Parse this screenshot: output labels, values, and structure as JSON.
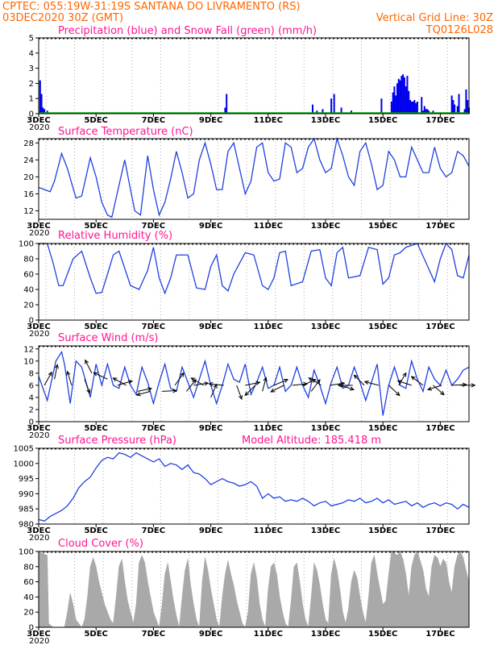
{
  "header": {
    "line1_left": "CPTEC:   055:19W-31:19S  SANTANA DO LIVRAMENTO (RS)",
    "line2_left": "03DEC2020 30Z (GMT)",
    "line2_right": "Vertical Grid Line: 30Z",
    "line3_right": "TQ0126L028",
    "model_altitude": "Model Altitude: 185.418  m"
  },
  "colors": {
    "header": "#ff6600",
    "panel_title": "#ff1493",
    "line": "#2040e0",
    "precip": "#0000ee",
    "snow": "#00aa00",
    "cloud": "#a9a9a9",
    "grid": "#aaaaaa",
    "arrow": "#000000"
  },
  "x_axis": {
    "start_day": 3,
    "end_day": 18,
    "tick_days": [
      3,
      5,
      7,
      9,
      11,
      13,
      15,
      17
    ],
    "tick_labels": [
      "3DEC",
      "5DEC",
      "7DEC",
      "9DEC",
      "11DEC",
      "13DEC",
      "15DEC",
      "17DEC"
    ],
    "vertical_grid_days": [
      3.25,
      4.25,
      5.25,
      6.25,
      7.25,
      8.25,
      9.25,
      10.25,
      11.25,
      12.25,
      13.25,
      14.25,
      15.25,
      16.25,
      17.25
    ]
  },
  "chart_data": [
    {
      "id": "precip",
      "type": "bar",
      "title": "Precipitation (blue) and Snow Fall (green) (mm/h)",
      "ylim": [
        0,
        5
      ],
      "yticks": [
        0,
        1,
        2,
        3,
        4,
        5
      ],
      "x": [
        3.05,
        3.1,
        3.15,
        3.2,
        3.3,
        9.5,
        9.55,
        12.55,
        12.7,
        12.9,
        13.2,
        13.3,
        13.55,
        13.9,
        14.95,
        15.3,
        15.35,
        15.4,
        15.45,
        15.5,
        15.55,
        15.6,
        15.65,
        15.7,
        15.75,
        15.8,
        15.85,
        15.9,
        15.95,
        16.0,
        16.05,
        16.1,
        16.15,
        16.2,
        16.35,
        16.4,
        16.45,
        16.5,
        16.55,
        16.6,
        16.75,
        17.4,
        17.45,
        17.5,
        17.6,
        17.65,
        17.85,
        17.9,
        17.95,
        18.0
      ],
      "values": [
        2.2,
        1.3,
        0.4,
        0.3,
        0.2,
        0.4,
        1.3,
        0.6,
        0.2,
        0.3,
        1.0,
        1.3,
        0.4,
        0.2,
        1.0,
        0.8,
        1.4,
        1.8,
        1.2,
        2.0,
        2.3,
        2.2,
        2.5,
        2.6,
        2.4,
        1.8,
        2.5,
        1.5,
        0.9,
        0.8,
        0.8,
        0.9,
        0.7,
        0.8,
        1.1,
        0.2,
        0.5,
        0.3,
        0.3,
        0.2,
        0.2,
        1.2,
        0.9,
        0.6,
        0.5,
        1.3,
        0.3,
        1.6,
        0.9,
        0.4
      ],
      "snow": []
    },
    {
      "id": "temp",
      "type": "line",
      "title": "Surface Temperature (nC)",
      "ylim": [
        10,
        29
      ],
      "yticks": [
        12,
        16,
        20,
        24,
        28
      ],
      "x": [
        3.0,
        3.2,
        3.4,
        3.55,
        3.8,
        4.0,
        4.3,
        4.5,
        4.8,
        5.0,
        5.2,
        5.4,
        5.55,
        5.8,
        6.0,
        6.2,
        6.35,
        6.55,
        6.8,
        7.0,
        7.2,
        7.4,
        7.6,
        7.8,
        8.0,
        8.2,
        8.4,
        8.6,
        8.8,
        9.0,
        9.2,
        9.4,
        9.6,
        9.8,
        10.0,
        10.2,
        10.4,
        10.6,
        10.8,
        11.0,
        11.2,
        11.4,
        11.6,
        11.8,
        12.0,
        12.2,
        12.4,
        12.6,
        12.8,
        13.0,
        13.2,
        13.4,
        13.6,
        13.8,
        14.0,
        14.2,
        14.4,
        14.6,
        14.8,
        15.0,
        15.2,
        15.4,
        15.6,
        15.8,
        16.0,
        16.2,
        16.4,
        16.6,
        16.8,
        17.0,
        17.2,
        17.4,
        17.6,
        17.8,
        18.0
      ],
      "values": [
        17.5,
        17.0,
        16.5,
        19.0,
        25.5,
        22.0,
        15.0,
        15.5,
        24.5,
        20.0,
        14.0,
        11.0,
        10.5,
        18.0,
        24.0,
        17.0,
        12.0,
        11.0,
        25.0,
        17.0,
        11.0,
        14.0,
        19.5,
        26.0,
        21.0,
        15.0,
        16.0,
        24.0,
        28.0,
        23.0,
        17.0,
        17.0,
        26.0,
        28.0,
        22.0,
        16.0,
        19.0,
        27.0,
        28.0,
        21.0,
        19.0,
        19.5,
        28.0,
        27.0,
        21.0,
        22.0,
        27.0,
        29.0,
        24.0,
        21.0,
        22.0,
        29.0,
        25.0,
        20.0,
        18.0,
        26.0,
        28.0,
        23.0,
        17.0,
        18.0,
        26.0,
        24.0,
        20.0,
        20.0,
        27.0,
        24.0,
        21.0,
        21.0,
        27.0,
        22.0,
        20.0,
        21.0,
        26.0,
        25.0,
        22.5
      ]
    },
    {
      "id": "rh",
      "type": "line",
      "title": "Relative Humidity (%)",
      "ylim": [
        0,
        100
      ],
      "yticks": [
        0,
        20,
        40,
        60,
        80,
        100
      ],
      "x": [
        3.0,
        3.3,
        3.5,
        3.7,
        3.85,
        4.2,
        4.5,
        4.8,
        5.0,
        5.2,
        5.4,
        5.6,
        5.8,
        6.2,
        6.5,
        6.8,
        7.0,
        7.2,
        7.4,
        7.6,
        7.8,
        8.2,
        8.5,
        8.8,
        9.0,
        9.2,
        9.4,
        9.6,
        9.8,
        10.2,
        10.5,
        10.8,
        11.0,
        11.2,
        11.4,
        11.6,
        11.8,
        12.2,
        12.5,
        12.8,
        13.0,
        13.2,
        13.4,
        13.6,
        13.8,
        14.2,
        14.5,
        14.8,
        15.0,
        15.2,
        15.4,
        15.6,
        15.8,
        16.2,
        16.5,
        16.8,
        17.0,
        17.2,
        17.4,
        17.6,
        17.8,
        18.0
      ],
      "values": [
        100,
        100,
        75,
        45,
        45,
        80,
        90,
        55,
        35,
        36,
        60,
        85,
        90,
        45,
        40,
        65,
        95,
        55,
        35,
        55,
        85,
        85,
        42,
        40,
        70,
        85,
        45,
        38,
        60,
        88,
        85,
        45,
        40,
        55,
        88,
        90,
        45,
        50,
        90,
        92,
        55,
        45,
        88,
        95,
        55,
        58,
        95,
        92,
        47,
        55,
        85,
        88,
        95,
        100,
        75,
        50,
        80,
        100,
        92,
        58,
        55,
        85
      ]
    },
    {
      "id": "wind",
      "type": "line",
      "title": "Surface Wind (m/s)",
      "ylim": [
        0,
        12.5
      ],
      "yticks": [
        0,
        2,
        4,
        6,
        8,
        10,
        12
      ],
      "x": [
        3.0,
        3.3,
        3.6,
        3.8,
        3.9,
        4.1,
        4.3,
        4.5,
        4.8,
        5.0,
        5.2,
        5.4,
        5.6,
        5.8,
        6.0,
        6.2,
        6.4,
        6.6,
        6.8,
        7.0,
        7.2,
        7.4,
        7.6,
        7.8,
        8.0,
        8.2,
        8.4,
        8.6,
        8.8,
        9.0,
        9.2,
        9.4,
        9.6,
        9.8,
        10.0,
        10.2,
        10.4,
        10.6,
        10.8,
        11.0,
        11.2,
        11.4,
        11.6,
        11.8,
        12.0,
        12.2,
        12.4,
        12.6,
        12.8,
        13.0,
        13.2,
        13.4,
        13.6,
        13.8,
        14.0,
        14.2,
        14.4,
        14.6,
        14.8,
        15.0,
        15.2,
        15.4,
        15.6,
        15.8,
        16.0,
        16.2,
        16.4,
        16.6,
        16.8,
        17.0,
        17.2,
        17.4,
        17.6,
        17.8,
        18.0
      ],
      "values": [
        7.5,
        3.5,
        10.0,
        11.5,
        9.5,
        3.0,
        10.0,
        9.0,
        4.0,
        9.5,
        6.0,
        9.5,
        6.0,
        5.5,
        9.0,
        6.0,
        4.5,
        9.0,
        6.5,
        3.0,
        6.5,
        9.5,
        5.5,
        5.0,
        9.0,
        6.5,
        4.0,
        7.0,
        10.0,
        6.0,
        3.0,
        6.0,
        9.5,
        7.0,
        6.5,
        9.5,
        4.5,
        6.5,
        9.0,
        5.5,
        6.0,
        9.0,
        5.0,
        6.0,
        9.0,
        6.0,
        4.0,
        8.5,
        6.0,
        3.0,
        6.5,
        9.0,
        5.5,
        6.0,
        9.0,
        6.5,
        3.5,
        6.5,
        9.5,
        1.0,
        6.0,
        9.0,
        6.0,
        5.5,
        10.0,
        7.0,
        5.0,
        9.0,
        7.0,
        6.0,
        8.5,
        6.0,
        7.0,
        8.5,
        9.0
      ],
      "arrows": [
        {
          "x": 3.2,
          "speed": 6,
          "u": 1,
          "v": 1.8
        },
        {
          "x": 3.55,
          "speed": 7,
          "u": 0.4,
          "v": 2.0
        },
        {
          "x": 4.15,
          "speed": 6,
          "u": -0.6,
          "v": 1.9
        },
        {
          "x": 4.6,
          "speed": 7,
          "u": 0.7,
          "v": -1.9
        },
        {
          "x": 4.85,
          "speed": 8,
          "u": -0.9,
          "v": 1.8
        },
        {
          "x": 5.4,
          "speed": 7,
          "u": -1.9,
          "v": 0.9
        },
        {
          "x": 5.75,
          "speed": 6,
          "u": 2.0,
          "v": 0.6
        },
        {
          "x": 6.05,
          "speed": 6,
          "u": -1.8,
          "v": 1.0
        },
        {
          "x": 6.45,
          "speed": 5,
          "u": 1.9,
          "v": 0.4
        },
        {
          "x": 6.9,
          "speed": 5,
          "u": -1.9,
          "v": -0.5
        },
        {
          "x": 7.3,
          "speed": 5,
          "u": 2.0,
          "v": 0.1
        },
        {
          "x": 7.75,
          "speed": 6,
          "u": 1.2,
          "v": 1.7
        },
        {
          "x": 8.15,
          "speed": 5,
          "u": 1.3,
          "v": 1.6
        },
        {
          "x": 8.4,
          "speed": 6,
          "u": 2.0,
          "v": 0.3
        },
        {
          "x": 8.75,
          "speed": 6,
          "u": -1.7,
          "v": 1.0
        },
        {
          "x": 9.0,
          "speed": 4,
          "u": 0.8,
          "v": 1.8
        },
        {
          "x": 9.45,
          "speed": 6,
          "u": -2.0,
          "v": 0.2
        },
        {
          "x": 9.9,
          "speed": 6,
          "u": 0.7,
          "v": -1.9
        },
        {
          "x": 10.2,
          "speed": 6,
          "u": 2.0,
          "v": 0.4
        },
        {
          "x": 10.55,
          "speed": 6,
          "u": -1.4,
          "v": -1.4
        },
        {
          "x": 10.8,
          "speed": 5,
          "u": 0.5,
          "v": 1.9
        },
        {
          "x": 11.2,
          "speed": 6,
          "u": 1.9,
          "v": 0.8
        },
        {
          "x": 11.55,
          "speed": 6,
          "u": -1.8,
          "v": -0.9
        },
        {
          "x": 11.85,
          "speed": 6,
          "u": 2.0,
          "v": 0.2
        },
        {
          "x": 12.2,
          "speed": 6,
          "u": 1.8,
          "v": 0.8
        },
        {
          "x": 12.5,
          "speed": 5,
          "u": 1.2,
          "v": 1.6
        },
        {
          "x": 12.85,
          "speed": 6,
          "u": -1.7,
          "v": 1.0
        },
        {
          "x": 13.15,
          "speed": 6,
          "u": 2.0,
          "v": 0.3
        },
        {
          "x": 13.5,
          "speed": 6,
          "u": 1.9,
          "v": -0.6
        },
        {
          "x": 13.95,
          "speed": 6,
          "u": -2.0,
          "v": 0.0
        },
        {
          "x": 14.35,
          "speed": 6,
          "u": -1.4,
          "v": 1.4
        },
        {
          "x": 14.85,
          "speed": 6,
          "u": -1.9,
          "v": 0.5
        },
        {
          "x": 15.2,
          "speed": 6,
          "u": 1.5,
          "v": -1.4
        },
        {
          "x": 15.55,
          "speed": 6,
          "u": 1.0,
          "v": 1.7
        },
        {
          "x": 16.0,
          "speed": 6,
          "u": -1.9,
          "v": 0.6
        },
        {
          "x": 16.4,
          "speed": 6,
          "u": -1.6,
          "v": 1.2
        },
        {
          "x": 16.75,
          "speed": 6,
          "u": 1.5,
          "v": -1.3
        },
        {
          "x": 17.05,
          "speed": 6,
          "u": -1.9,
          "v": -0.6
        },
        {
          "x": 17.4,
          "speed": 6,
          "u": 2.0,
          "v": 0.1
        },
        {
          "x": 17.7,
          "speed": 6,
          "u": 2.0,
          "v": 0.0
        }
      ]
    },
    {
      "id": "pressure",
      "type": "line",
      "title": "Surface Pressure (hPa)",
      "ylim": [
        980,
        1005
      ],
      "yticks": [
        980,
        985,
        990,
        995,
        1000,
        1005
      ],
      "x": [
        3.0,
        3.2,
        3.4,
        3.6,
        3.8,
        4.0,
        4.2,
        4.4,
        4.6,
        4.8,
        5.0,
        5.2,
        5.4,
        5.6,
        5.8,
        6.0,
        6.2,
        6.4,
        6.6,
        6.8,
        7.0,
        7.2,
        7.4,
        7.6,
        7.8,
        8.0,
        8.2,
        8.4,
        8.6,
        8.8,
        9.0,
        9.2,
        9.4,
        9.6,
        9.8,
        10.0,
        10.2,
        10.4,
        10.6,
        10.8,
        11.0,
        11.2,
        11.4,
        11.6,
        11.8,
        12.0,
        12.2,
        12.4,
        12.6,
        12.8,
        13.0,
        13.2,
        13.4,
        13.6,
        13.8,
        14.0,
        14.2,
        14.4,
        14.6,
        14.8,
        15.0,
        15.2,
        15.4,
        15.6,
        15.8,
        16.0,
        16.2,
        16.4,
        16.6,
        16.8,
        17.0,
        17.2,
        17.4,
        17.6,
        17.8,
        18.0
      ],
      "values": [
        981.5,
        981.0,
        982.5,
        983.5,
        984.5,
        986.0,
        988.5,
        992.0,
        994.0,
        995.5,
        998.5,
        1001.0,
        1002.0,
        1001.5,
        1003.5,
        1003.0,
        1002.0,
        1003.5,
        1002.5,
        1001.5,
        1000.5,
        1001.5,
        999.0,
        1000.0,
        999.5,
        998.0,
        999.5,
        997.0,
        996.5,
        995.0,
        993.0,
        994.0,
        995.0,
        994.0,
        993.5,
        992.5,
        993.0,
        994.0,
        992.5,
        988.5,
        990.0,
        988.5,
        989.0,
        987.5,
        988.0,
        987.5,
        988.5,
        987.5,
        986.0,
        987.0,
        987.5,
        986.0,
        986.5,
        987.0,
        988.0,
        987.5,
        988.5,
        987.0,
        987.5,
        988.5,
        987.0,
        988.0,
        986.5,
        987.0,
        987.5,
        986.0,
        987.0,
        985.5,
        986.5,
        987.0,
        986.0,
        987.0,
        986.5,
        985.0,
        986.5,
        985.5
      ]
    },
    {
      "id": "cloud",
      "type": "area",
      "title": "Cloud Cover (%)",
      "ylim": [
        0,
        100
      ],
      "yticks": [
        0,
        20,
        40,
        60,
        80,
        100
      ],
      "x": [
        3.0,
        3.1,
        3.3,
        3.35,
        3.5,
        3.6,
        3.7,
        3.8,
        3.9,
        4.0,
        4.1,
        4.2,
        4.3,
        4.4,
        4.5,
        4.6,
        4.7,
        4.8,
        4.9,
        5.0,
        5.1,
        5.2,
        5.3,
        5.4,
        5.5,
        5.6,
        5.7,
        5.8,
        5.9,
        6.0,
        6.1,
        6.2,
        6.3,
        6.4,
        6.5,
        6.6,
        6.7,
        6.8,
        6.9,
        7.0,
        7.1,
        7.2,
        7.3,
        7.4,
        7.5,
        7.6,
        7.7,
        7.8,
        7.9,
        8.0,
        8.1,
        8.2,
        8.3,
        8.4,
        8.5,
        8.6,
        8.7,
        8.8,
        8.9,
        9.0,
        9.1,
        9.2,
        9.3,
        9.4,
        9.5,
        9.6,
        9.7,
        9.8,
        9.9,
        10.0,
        10.1,
        10.2,
        10.3,
        10.4,
        10.5,
        10.6,
        10.7,
        10.8,
        10.9,
        11.0,
        11.1,
        11.2,
        11.3,
        11.4,
        11.5,
        11.6,
        11.7,
        11.8,
        11.9,
        12.0,
        12.1,
        12.2,
        12.3,
        12.4,
        12.5,
        12.6,
        12.7,
        12.8,
        12.9,
        13.0,
        13.1,
        13.2,
        13.3,
        13.4,
        13.5,
        13.6,
        13.7,
        13.8,
        13.9,
        14.0,
        14.1,
        14.2,
        14.3,
        14.4,
        14.5,
        14.6,
        14.7,
        14.8,
        14.9,
        15.0,
        15.1,
        15.2,
        15.3,
        15.4,
        15.5,
        15.6,
        15.7,
        15.8,
        15.9,
        16.0,
        16.1,
        16.2,
        16.3,
        16.4,
        16.5,
        16.6,
        16.7,
        16.8,
        16.9,
        17.0,
        17.1,
        17.2,
        17.3,
        17.4,
        17.5,
        17.6,
        17.7,
        17.8,
        17.9,
        18.0
      ],
      "values": [
        100,
        98,
        95,
        5,
        0,
        0,
        0,
        0,
        0,
        20,
        45,
        30,
        10,
        5,
        0,
        10,
        40,
        80,
        92,
        80,
        60,
        45,
        30,
        20,
        10,
        5,
        40,
        80,
        90,
        60,
        35,
        20,
        5,
        30,
        85,
        95,
        85,
        60,
        40,
        20,
        10,
        0,
        30,
        70,
        85,
        60,
        35,
        15,
        0,
        40,
        75,
        90,
        55,
        30,
        10,
        0,
        60,
        92,
        75,
        50,
        30,
        10,
        0,
        40,
        70,
        88,
        70,
        55,
        35,
        20,
        5,
        0,
        20,
        70,
        85,
        65,
        30,
        10,
        0,
        50,
        80,
        85,
        70,
        40,
        20,
        5,
        0,
        35,
        80,
        85,
        60,
        30,
        10,
        0,
        40,
        85,
        75,
        55,
        30,
        10,
        5,
        70,
        90,
        75,
        50,
        20,
        5,
        25,
        60,
        75,
        65,
        40,
        20,
        5,
        40,
        85,
        95,
        70,
        50,
        30,
        35,
        70,
        100,
        98,
        95,
        100,
        90,
        70,
        40,
        80,
        95,
        100,
        88,
        75,
        50,
        40,
        80,
        95,
        92,
        80,
        90,
        85,
        60,
        45,
        80,
        95,
        100,
        92,
        75,
        60
      ]
    }
  ],
  "tag": "2020"
}
